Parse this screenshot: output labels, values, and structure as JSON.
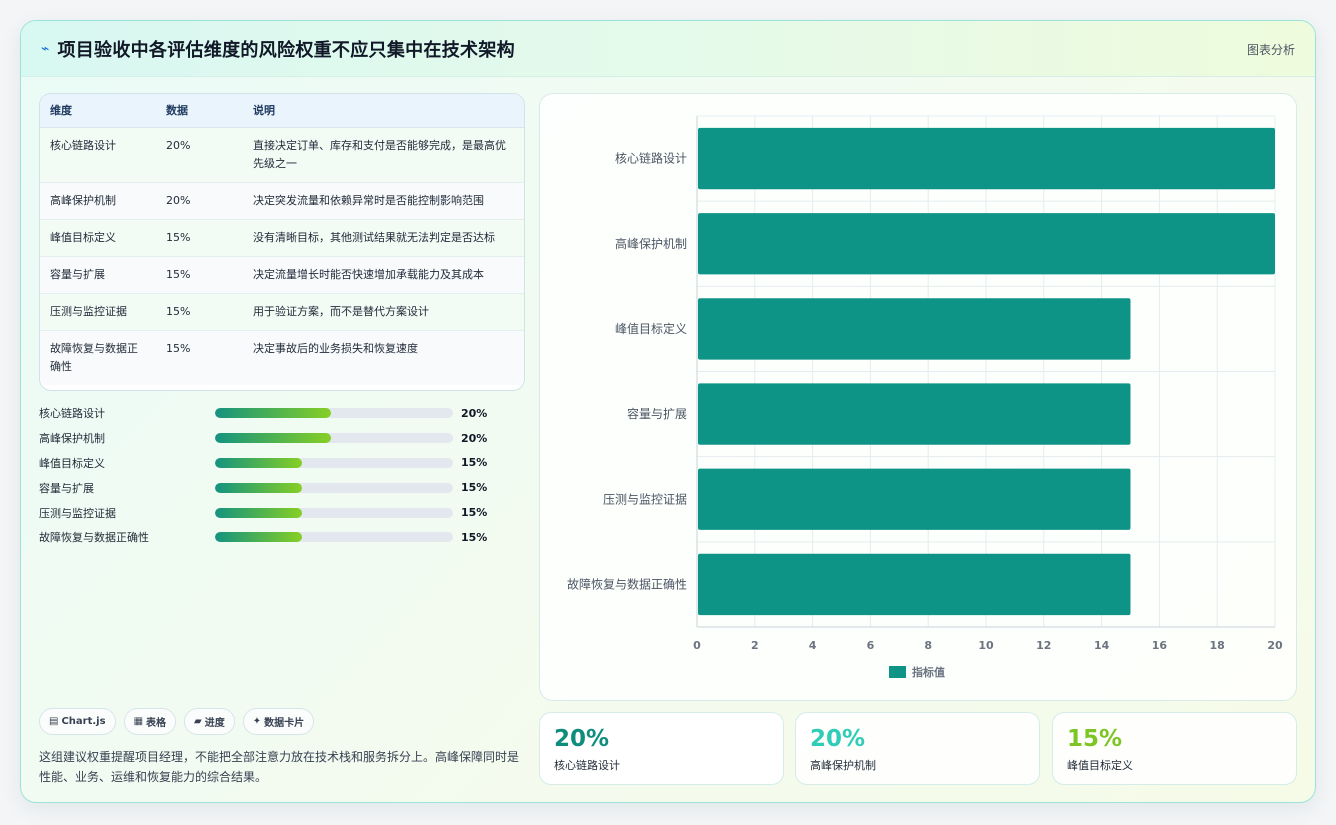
{
  "header": {
    "icon": "bolt-icon",
    "title": "项目验收中各评估维度的风险权重不应只集中在技术架构",
    "action": "图表分析"
  },
  "table": {
    "columns": [
      "维度",
      "数据",
      "说明"
    ],
    "rows": [
      {
        "dim": "核心链路设计",
        "val": "20%",
        "desc": "直接决定订单、库存和支付是否能够完成，是最高优先级之一"
      },
      {
        "dim": "高峰保护机制",
        "val": "20%",
        "desc": "决定突发流量和依赖异常时是否能控制影响范围"
      },
      {
        "dim": "峰值目标定义",
        "val": "15%",
        "desc": "没有清晰目标，其他测试结果就无法判定是否达标"
      },
      {
        "dim": "容量与扩展",
        "val": "15%",
        "desc": "决定流量增长时能否快速增加承载能力及其成本"
      },
      {
        "dim": "压测与监控证据",
        "val": "15%",
        "desc": "用于验证方案，而不是替代方案设计"
      },
      {
        "dim": "故障恢复与数据正确性",
        "val": "15%",
        "desc": "决定事故后的业务损失和恢复速度"
      }
    ]
  },
  "progress": [
    {
      "label": "核心链路设计",
      "value": 20,
      "text": "20%"
    },
    {
      "label": "高峰保护机制",
      "value": 20,
      "text": "20%"
    },
    {
      "label": "峰值目标定义",
      "value": 15,
      "text": "15%"
    },
    {
      "label": "容量与扩展",
      "value": 15,
      "text": "15%"
    },
    {
      "label": "压测与监控证据",
      "value": 15,
      "text": "15%"
    },
    {
      "label": "故障恢复与数据正确性",
      "value": 15,
      "text": "15%"
    }
  ],
  "progress_max": 41,
  "tags": [
    {
      "icon": "▤",
      "label": "Chart.js"
    },
    {
      "icon": "▦",
      "label": "表格"
    },
    {
      "icon": "▰",
      "label": "进度"
    },
    {
      "icon": "✦",
      "label": "数据卡片"
    }
  ],
  "summary": "这组建议权重提醒项目经理，不能把全部注意力放在技术栈和服务拆分上。高峰保障同时是性能、业务、运维和恢复能力的综合结果。",
  "chart_data": {
    "type": "bar",
    "orientation": "horizontal",
    "categories": [
      "核心链路设计",
      "高峰保护机制",
      "峰值目标定义",
      "容量与扩展",
      "压测与监控证据",
      "故障恢复与数据正确性"
    ],
    "series": [
      {
        "name": "指标值",
        "values": [
          20,
          20,
          15,
          15,
          15,
          15
        ],
        "color": "#0e9486"
      }
    ],
    "xlim": [
      0,
      20
    ],
    "xticks": [
      0,
      2,
      4,
      6,
      8,
      10,
      12,
      14,
      16,
      18,
      20
    ],
    "grid": true,
    "legend": "bottom"
  },
  "stats": [
    {
      "value": "20%",
      "label": "核心链路设计",
      "color": "#0e8c7e"
    },
    {
      "value": "20%",
      "label": "高峰保护机制",
      "color": "#2fcdb8"
    },
    {
      "value": "15%",
      "label": "峰值目标定义",
      "color": "#7dc524"
    }
  ]
}
